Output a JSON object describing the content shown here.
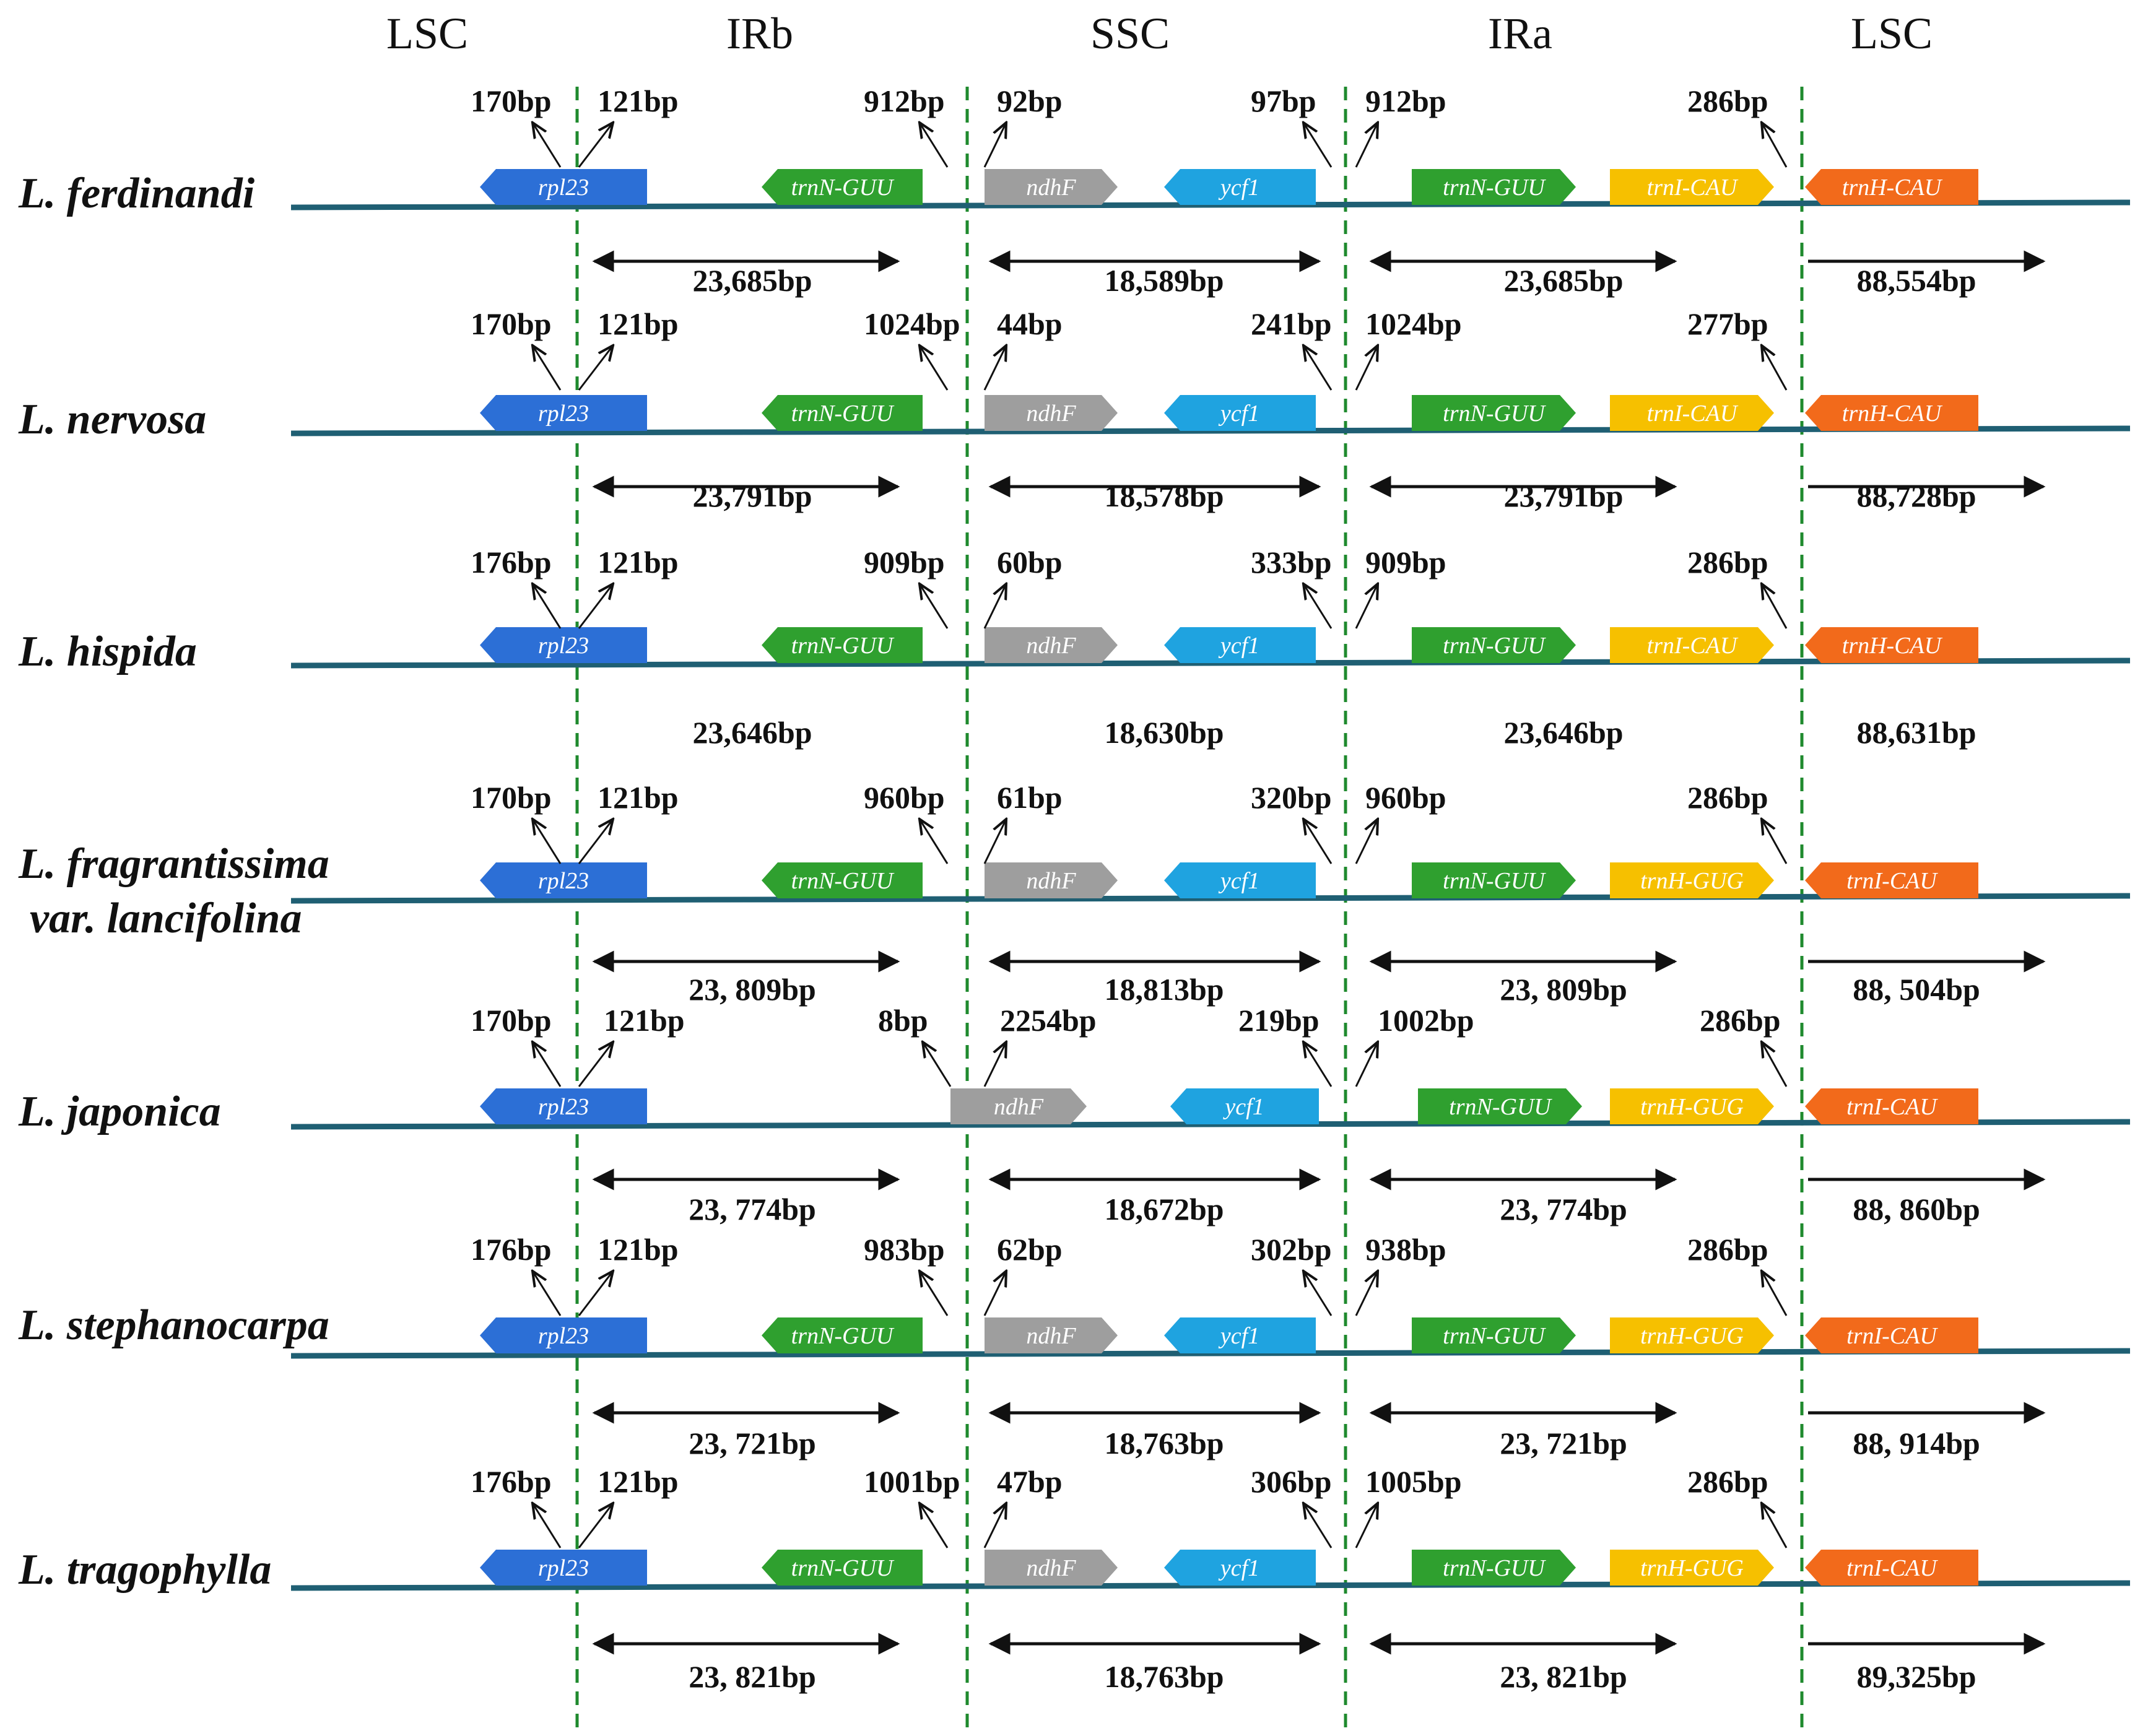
{
  "regions": [
    "LSC",
    "IRb",
    "SSC",
    "IRa",
    "LSC"
  ],
  "colors": {
    "backbone": "#1f5f73",
    "boundary": "#1f8a2e",
    "rpl23": "#2c6fd6",
    "trnN-GUU": "#2fa02f",
    "ndhF": "#9e9e9e",
    "ycf1": "#1fa3e0",
    "trnI-CAU": "#f6c000",
    "trnH-GUG": "#f6c000",
    "trnH-CAU": "#f26a1b",
    "trnH-CAU-orange": "#f26a1b",
    "trnI-CAU-orange": "#f26a1b"
  },
  "species": [
    {
      "name": "L. ferdinandi",
      "junctions": [
        "170bp",
        "121bp",
        "912bp",
        "92bp",
        "97bp",
        "912bp",
        "286bp"
      ],
      "genes": [
        "rpl23",
        "trnN-GUU",
        "ndhF",
        "ycf1",
        "trnN-GUU",
        "trnI-CAU",
        "trnH-CAU"
      ],
      "gene_colors": [
        "rpl23",
        "trnN-GUU",
        "ndhF",
        "ycf1",
        "trnN-GUU",
        "trnI-CAU",
        "trnH-CAU-orange"
      ],
      "lengths": [
        "23,685bp",
        "18,589bp",
        "23,685bp",
        "88,554bp"
      ],
      "length_arrows": true
    },
    {
      "name": "L. nervosa",
      "junctions": [
        "170bp",
        "121bp",
        "1024bp",
        "44bp",
        "241bp",
        "1024bp",
        "277bp"
      ],
      "genes": [
        "rpl23",
        "trnN-GUU",
        "ndhF",
        "ycf1",
        "trnN-GUU",
        "trnI-CAU",
        "trnH-CAU"
      ],
      "gene_colors": [
        "rpl23",
        "trnN-GUU",
        "ndhF",
        "ycf1",
        "trnN-GUU",
        "trnI-CAU",
        "trnH-CAU-orange"
      ],
      "lengths": [
        "23,791bp",
        "18,578bp",
        "23,791bp",
        "88,728bp"
      ],
      "length_arrows": true
    },
    {
      "name": "L. hispida",
      "junctions": [
        "176bp",
        "121bp",
        "909bp",
        "60bp",
        "333bp",
        "909bp",
        "286bp"
      ],
      "genes": [
        "rpl23",
        "trnN-GUU",
        "ndhF",
        "ycf1",
        "trnN-GUU",
        "trnI-CAU",
        "trnH-CAU"
      ],
      "gene_colors": [
        "rpl23",
        "trnN-GUU",
        "ndhF",
        "ycf1",
        "trnN-GUU",
        "trnI-CAU",
        "trnH-CAU-orange"
      ],
      "lengths": [
        "23,646bp",
        "18,630bp",
        "23,646bp",
        "88,631bp"
      ],
      "length_arrows": false
    },
    {
      "name": "L. fragrantissima",
      "name2": "var. lancifolina",
      "junctions": [
        "170bp",
        "121bp",
        "960bp",
        "61bp",
        "320bp",
        "960bp",
        "286bp"
      ],
      "genes": [
        "rpl23",
        "trnN-GUU",
        "ndhF",
        "ycf1",
        "trnN-GUU",
        "trnH-GUG",
        "trnI-CAU"
      ],
      "gene_colors": [
        "rpl23",
        "trnN-GUU",
        "ndhF",
        "ycf1",
        "trnN-GUU",
        "trnH-GUG",
        "trnI-CAU-orange"
      ],
      "lengths": [
        "23, 809bp",
        "18,813bp",
        "23, 809bp",
        "88, 504bp"
      ],
      "length_arrows": true
    },
    {
      "name": "L. japonica",
      "junctions": [
        "170bp",
        "121bp",
        "8bp",
        "2254bp",
        "219bp",
        "1002bp",
        "286bp"
      ],
      "genes": [
        "rpl23",
        "ndhF",
        "ycf1",
        "trnN-GUU",
        "trnH-GUG",
        "trnI-CAU"
      ],
      "gene_colors": [
        "rpl23",
        "ndhF",
        "ycf1",
        "trnN-GUU",
        "trnH-GUG",
        "trnI-CAU-orange"
      ],
      "lengths": [
        "23, 774bp",
        "18,672bp",
        "23, 774bp",
        "88, 860bp"
      ],
      "length_arrows": true
    },
    {
      "name": "L. stephanocarpa",
      "junctions": [
        "176bp",
        "121bp",
        "983bp",
        "62bp",
        "302bp",
        "938bp",
        "286bp"
      ],
      "genes": [
        "rpl23",
        "trnN-GUU",
        "ndhF",
        "ycf1",
        "trnN-GUU",
        "trnH-GUG",
        "trnI-CAU"
      ],
      "gene_colors": [
        "rpl23",
        "trnN-GUU",
        "ndhF",
        "ycf1",
        "trnN-GUU",
        "trnH-GUG",
        "trnI-CAU-orange"
      ],
      "lengths": [
        "23, 721bp",
        "18,763bp",
        "23, 721bp",
        "88, 914bp"
      ],
      "length_arrows": true
    },
    {
      "name": "L. tragophylla",
      "junctions": [
        "176bp",
        "121bp",
        "1001bp",
        "47bp",
        "306bp",
        "1005bp",
        "286bp"
      ],
      "genes": [
        "rpl23",
        "trnN-GUU",
        "ndhF",
        "ycf1",
        "trnN-GUU",
        "trnH-GUG",
        "trnI-CAU"
      ],
      "gene_colors": [
        "rpl23",
        "trnN-GUU",
        "ndhF",
        "ycf1",
        "trnN-GUU",
        "trnH-GUG",
        "trnI-CAU-orange"
      ],
      "lengths": [
        "23, 821bp",
        "18,763bp",
        "23, 821bp",
        "89,325bp"
      ],
      "length_arrows": true
    }
  ]
}
